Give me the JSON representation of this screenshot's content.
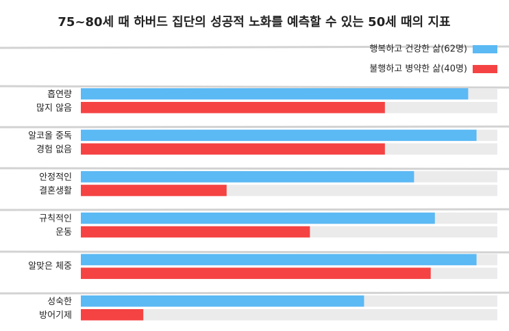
{
  "chart_data": {
    "type": "bar",
    "orientation": "horizontal",
    "title": "75~80세 때 하버드 집단의 성공적 노화를 예측할 수 있는 50세 때의 지표",
    "categories": [
      [
        "흡연량",
        "많지 않음"
      ],
      [
        "알코올 중독",
        "경험 없음"
      ],
      [
        "안정적인",
        "결혼생활"
      ],
      [
        "규칙적인",
        "운동"
      ],
      [
        "알맞은 체중"
      ],
      [
        "성숙한",
        "방어기제"
      ]
    ],
    "series": [
      {
        "name": "행복하고 건강한 삶(62명)",
        "color": "#5bb9f4",
        "values": [
          93,
          95,
          80,
          85,
          95,
          68
        ]
      },
      {
        "name": "불행하고 병약한 삶(40명)",
        "color": "#f54343",
        "values": [
          73,
          73,
          35,
          55,
          84,
          15
        ]
      }
    ],
    "xlim": [
      0,
      100
    ],
    "track_color": "#ebebeb",
    "legend": "top-right"
  }
}
